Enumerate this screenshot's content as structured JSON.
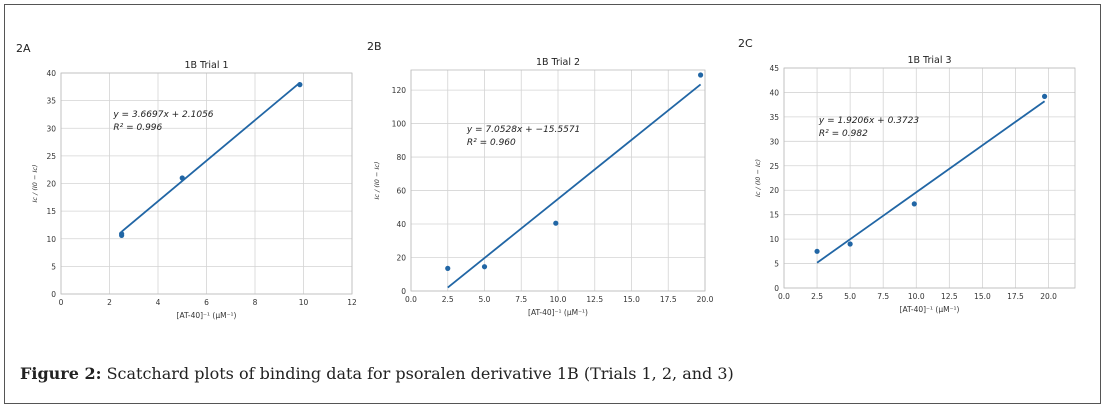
{
  "caption": {
    "label": "Figure 2:",
    "text": " Scatchard plots of binding data for psoralen derivative 1B (Trials 1, 2, and 3)"
  },
  "colors": {
    "series": "#2166a5",
    "grid": "#d4d4d4"
  },
  "chart_data": [
    {
      "panel": "2A",
      "type": "scatter",
      "title": "1B Trial 1",
      "xlabel": "[AT-40]⁻¹ (μM⁻¹)",
      "ylabel": "Ic / (I0 − Ic)",
      "xlim": [
        0,
        12
      ],
      "ylim": [
        0,
        40
      ],
      "xticks": [
        0,
        2,
        4,
        6,
        8,
        10,
        12
      ],
      "yticks": [
        0,
        5,
        10,
        15,
        20,
        25,
        30,
        35,
        40
      ],
      "xtick_labels": [
        "0",
        "2",
        "4",
        "6",
        "8",
        "10",
        "12"
      ],
      "ytick_labels": [
        "0",
        "5",
        "10",
        "15",
        "20",
        "25",
        "30",
        "35",
        "40"
      ],
      "grid": true,
      "points": {
        "x": [
          2.5,
          2.5,
          5.0,
          9.85
        ],
        "y": [
          10.6,
          10.9,
          21.0,
          37.9
        ]
      },
      "fit": {
        "slope": 3.6697,
        "intercept": 2.1056,
        "x_range": [
          2.5,
          9.85
        ]
      },
      "annotation": [
        "y = 3.6697x + 2.1056",
        "R² = 0.996"
      ]
    },
    {
      "panel": "2B",
      "type": "scatter",
      "title": "1B Trial 2",
      "xlabel": "[AT-40]⁻¹ (μM⁻¹)",
      "ylabel": "Ic / (I0 − Ic)",
      "xlim": [
        0,
        20
      ],
      "ylim": [
        0,
        132
      ],
      "xticks": [
        0,
        2.5,
        5,
        7.5,
        10,
        12.5,
        15,
        17.5,
        20
      ],
      "yticks": [
        0,
        20,
        40,
        60,
        80,
        100,
        120
      ],
      "xtick_labels": [
        "0.0",
        "2.5",
        "5.0",
        "7.5",
        "10.0",
        "12.5",
        "15.0",
        "17.5",
        "20.0"
      ],
      "ytick_labels": [
        "0",
        "20",
        "40",
        "60",
        "80",
        "100",
        "120"
      ],
      "grid": true,
      "points": {
        "x": [
          2.5,
          5.0,
          9.85,
          19.7
        ],
        "y": [
          13.5,
          14.5,
          40.5,
          129.0
        ]
      },
      "fit": {
        "slope": 7.0528,
        "intercept": -15.5571,
        "x_range": [
          2.5,
          19.7
        ]
      },
      "annotation": [
        "y = 7.0528x + −15.5571",
        "R² = 0.960"
      ]
    },
    {
      "panel": "2C",
      "type": "scatter",
      "title": "1B Trial 3",
      "xlabel": "[AT-40]⁻¹ (μM⁻¹)",
      "ylabel": "Ic / (I0 − Ic)",
      "xlim": [
        0,
        22
      ],
      "ylim": [
        0,
        45
      ],
      "xticks": [
        0,
        2.5,
        5,
        7.5,
        10,
        12.5,
        15,
        17.5,
        20
      ],
      "yticks": [
        0,
        5,
        10,
        15,
        20,
        25,
        30,
        35,
        40,
        45
      ],
      "xtick_labels": [
        "0.0",
        "2.5",
        "5.0",
        "7.5",
        "10.0",
        "12.5",
        "15.0",
        "17.5",
        "20.0"
      ],
      "ytick_labels": [
        "0",
        "5",
        "10",
        "15",
        "20",
        "25",
        "30",
        "35",
        "40",
        "45"
      ],
      "grid": true,
      "points": {
        "x": [
          2.5,
          5.0,
          9.85,
          19.7
        ],
        "y": [
          7.5,
          9.0,
          17.2,
          39.2
        ]
      },
      "fit": {
        "slope": 1.9206,
        "intercept": 0.3723,
        "x_range": [
          2.5,
          19.7
        ]
      },
      "annotation": [
        "y = 1.9206x + 0.3723",
        "R² = 0.982"
      ]
    }
  ]
}
